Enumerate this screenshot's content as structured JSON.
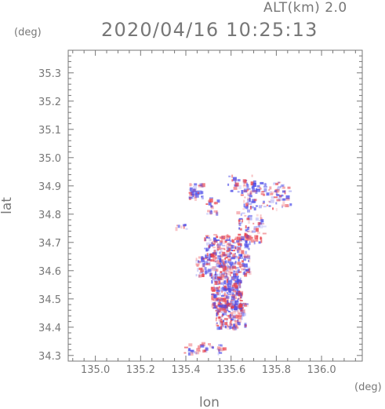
{
  "header": {
    "alt_label": "ALT(km) 2.0",
    "datetime": "2020/04/16 10:25:13"
  },
  "chart_data": {
    "type": "heatmap",
    "title": "2020/04/16 10:25:13",
    "xlabel": "lon",
    "ylabel": "lat",
    "x_unit": "(deg)",
    "y_unit": "(deg)",
    "xlim": [
      134.88,
      136.18
    ],
    "ylim": [
      34.28,
      35.38
    ],
    "x_ticks": [
      135.0,
      135.2,
      135.4,
      135.6,
      135.8,
      136.0
    ],
    "x_tick_labels": [
      "135.0",
      "135.2",
      "135.4",
      "135.6",
      "135.8",
      "136.0"
    ],
    "y_ticks": [
      34.3,
      34.4,
      34.5,
      34.6,
      34.7,
      34.8,
      34.9,
      35.0,
      35.1,
      35.2,
      35.3
    ],
    "y_tick_labels": [
      "34.3",
      "34.4",
      "34.5",
      "34.6",
      "34.7",
      "34.8",
      "34.9",
      "35.0",
      "35.1",
      "35.2",
      "35.3"
    ],
    "grid": false,
    "colors": {
      "positive": "#e8404a",
      "negative": "#4a4ae8",
      "axis": "#777777"
    },
    "regions": [
      {
        "lon": [
          135.41,
          135.47
        ],
        "lat": [
          34.86,
          34.91
        ],
        "n": 40
      },
      {
        "lon": [
          135.48,
          135.54
        ],
        "lat": [
          34.8,
          34.86
        ],
        "n": 20
      },
      {
        "lon": [
          135.58,
          135.7
        ],
        "lat": [
          34.87,
          34.94
        ],
        "n": 35
      },
      {
        "lon": [
          135.65,
          135.86
        ],
        "lat": [
          34.82,
          34.92
        ],
        "n": 110
      },
      {
        "lon": [
          135.62,
          135.74
        ],
        "lat": [
          34.7,
          34.83
        ],
        "n": 70
      },
      {
        "lon": [
          135.35,
          135.4
        ],
        "lat": [
          34.75,
          34.77
        ],
        "n": 8
      },
      {
        "lon": [
          135.44,
          135.48
        ],
        "lat": [
          34.58,
          34.66
        ],
        "n": 30
      },
      {
        "lon": [
          135.48,
          135.68
        ],
        "lat": [
          34.59,
          34.73
        ],
        "n": 320
      },
      {
        "lon": [
          135.51,
          135.64
        ],
        "lat": [
          34.47,
          34.59
        ],
        "n": 260
      },
      {
        "lon": [
          135.53,
          135.66
        ],
        "lat": [
          34.4,
          34.49
        ],
        "n": 150
      },
      {
        "lon": [
          135.38,
          135.58
        ],
        "lat": [
          34.31,
          34.35
        ],
        "n": 45
      }
    ]
  }
}
